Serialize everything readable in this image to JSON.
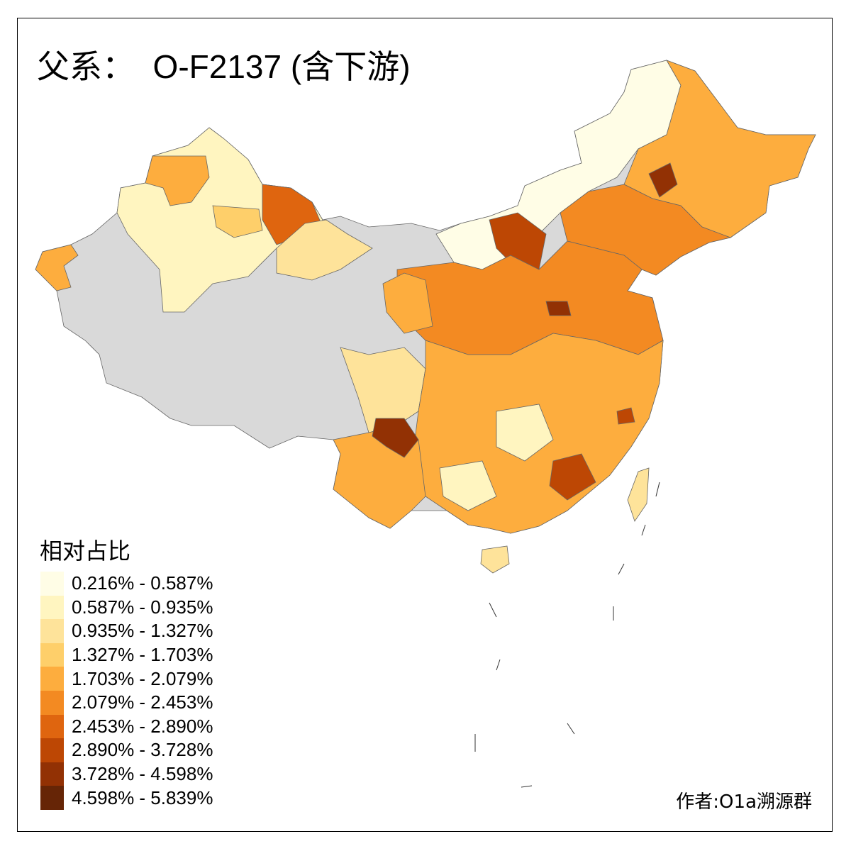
{
  "title": "父系：  O-F2137 (含下游)",
  "legend": {
    "title": "相对占比",
    "classes": [
      {
        "label": "0.216% - 0.587%",
        "color": "#FFFDE6"
      },
      {
        "label": "0.587% - 0.935%",
        "color": "#FFF5C0"
      },
      {
        "label": "0.935% - 1.327%",
        "color": "#FEE39A"
      },
      {
        "label": "1.327% - 1.703%",
        "color": "#FECF6A"
      },
      {
        "label": "1.703% - 2.079%",
        "color": "#FDAD3E"
      },
      {
        "label": "2.079% - 2.453%",
        "color": "#F38A22"
      },
      {
        "label": "2.453% - 2.890%",
        "color": "#DF650F"
      },
      {
        "label": "2.890% - 3.728%",
        "color": "#BD4704"
      },
      {
        "label": "3.728% - 4.598%",
        "color": "#923104"
      },
      {
        "label": "4.598% - 5.839%",
        "color": "#662506"
      }
    ],
    "no_data_color": "#D9D9D9"
  },
  "credit": "作者:O1a溯源群"
}
